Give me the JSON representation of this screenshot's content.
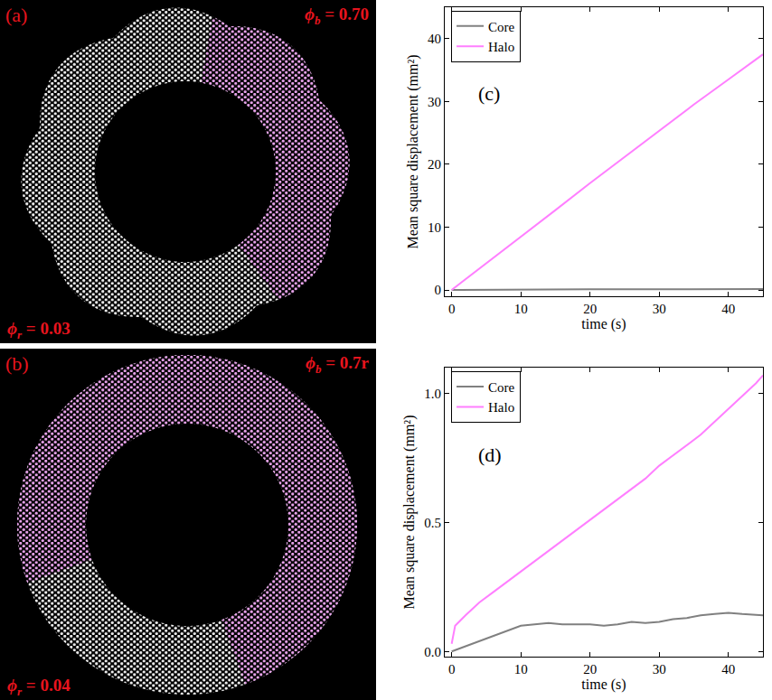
{
  "snapshots": [
    {
      "label": "(a)",
      "phi_b": {
        "symbol": "ϕ",
        "sub": "b",
        "rest": " = 0.70"
      },
      "phi_r": {
        "symbol": "ϕ",
        "sub": "r",
        "rest": " = 0.03"
      }
    },
    {
      "label": "(b)",
      "phi_b": {
        "symbol": "ϕ",
        "sub": "b",
        "rest": " = 0.7r"
      },
      "phi_r": {
        "symbol": "ϕ",
        "sub": "r",
        "rest": " = 0.04"
      }
    }
  ],
  "chart_data": [
    {
      "type": "line",
      "annotations": [
        "(c)"
      ],
      "x_label": "time (s)",
      "y_label": "Mean square displacement (mm²)",
      "x": [
        0,
        5,
        10,
        15,
        20,
        25,
        30,
        35,
        40,
        45
      ],
      "series": [
        {
          "name": "Core",
          "color": "#808080",
          "values": [
            0,
            0.05,
            0.08,
            0.1,
            0.1,
            0.1,
            0.11,
            0.12,
            0.13,
            0.14
          ]
        },
        {
          "name": "Halo",
          "color": "#ff7fff",
          "values": [
            0,
            4.2,
            8.5,
            12.7,
            17.0,
            21.2,
            25.4,
            29.5,
            33.5,
            37.5
          ]
        }
      ],
      "xlim": [
        -1,
        45
      ],
      "ylim": [
        -1,
        45
      ],
      "xticks": [
        0,
        10,
        20,
        30,
        40
      ],
      "yticks": [
        0,
        10,
        20,
        30,
        40
      ],
      "legend": "upper left",
      "grid": false
    },
    {
      "type": "line",
      "annotations": [
        "(d)"
      ],
      "x_label": "time (s)",
      "y_label": "Mean square displacement (mm²)",
      "x": [
        0,
        0.5,
        2,
        4,
        6,
        8,
        10,
        12,
        14,
        16,
        18,
        20,
        22,
        24,
        26,
        28,
        30,
        32,
        34,
        36,
        38,
        40,
        42,
        44,
        45
      ],
      "series": [
        {
          "name": "Core",
          "color": "#808080",
          "values": [
            0,
            0.005,
            0.02,
            0.04,
            0.06,
            0.08,
            0.1,
            0.105,
            0.11,
            0.105,
            0.105,
            0.105,
            0.1,
            0.105,
            0.115,
            0.11,
            0.115,
            0.125,
            0.13,
            0.14,
            0.145,
            0.15,
            0.145,
            0.14,
            0.14
          ]
        },
        {
          "name": "Halo",
          "color": "#ff7fff",
          "values": [
            0.03,
            0.1,
            0.14,
            0.19,
            0.23,
            0.27,
            0.31,
            0.35,
            0.39,
            0.43,
            0.47,
            0.51,
            0.55,
            0.59,
            0.63,
            0.67,
            0.72,
            0.76,
            0.8,
            0.84,
            0.89,
            0.94,
            0.99,
            1.04,
            1.07
          ]
        }
      ],
      "xlim": [
        -1,
        45
      ],
      "ylim": [
        -0.02,
        1.1
      ],
      "xticks": [
        0,
        10,
        20,
        30,
        40
      ],
      "yticks": [
        {
          "value": 0,
          "label": "0.0"
        },
        {
          "value": 0.5,
          "label": "0.5"
        },
        {
          "value": 1,
          "label": "1.0"
        }
      ],
      "legend": "upper left",
      "grid": false
    }
  ]
}
